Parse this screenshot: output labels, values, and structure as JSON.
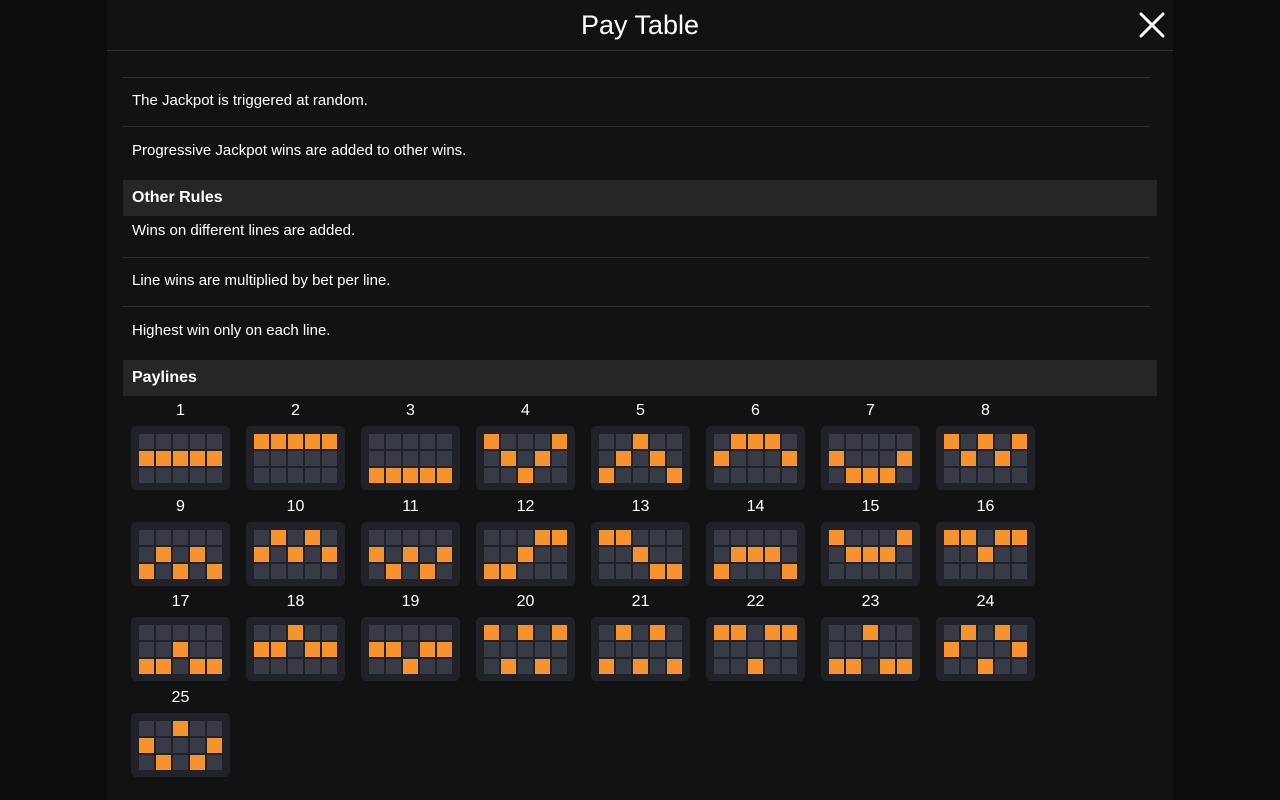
{
  "header": {
    "title": "Pay Table"
  },
  "jackpot_rules": [
    "The Jackpot is triggered at random.",
    "Progressive Jackpot wins are added to other wins."
  ],
  "other_rules": {
    "heading": "Other Rules",
    "items": [
      "Wins on different lines are added.",
      "Line wins are multiplied by bet per line.",
      "Highest win only on each line."
    ]
  },
  "paylines": {
    "heading": "Paylines",
    "lines": [
      {
        "label": "1",
        "rows": [
          1,
          1,
          1,
          1,
          1
        ]
      },
      {
        "label": "2",
        "rows": [
          0,
          0,
          0,
          0,
          0
        ]
      },
      {
        "label": "3",
        "rows": [
          2,
          2,
          2,
          2,
          2
        ]
      },
      {
        "label": "4",
        "rows": [
          0,
          1,
          2,
          1,
          0
        ]
      },
      {
        "label": "5",
        "rows": [
          2,
          1,
          0,
          1,
          2
        ]
      },
      {
        "label": "6",
        "rows": [
          1,
          0,
          0,
          0,
          1
        ]
      },
      {
        "label": "7",
        "rows": [
          1,
          2,
          2,
          2,
          1
        ]
      },
      {
        "label": "8",
        "rows": [
          0,
          1,
          0,
          1,
          0
        ]
      },
      {
        "label": "9",
        "rows": [
          2,
          1,
          2,
          1,
          2
        ]
      },
      {
        "label": "10",
        "rows": [
          1,
          0,
          1,
          0,
          1
        ]
      },
      {
        "label": "11",
        "rows": [
          1,
          2,
          1,
          2,
          1
        ]
      },
      {
        "label": "12",
        "rows": [
          2,
          2,
          1,
          0,
          0
        ]
      },
      {
        "label": "13",
        "rows": [
          0,
          0,
          1,
          2,
          2
        ]
      },
      {
        "label": "14",
        "rows": [
          2,
          1,
          1,
          1,
          2
        ]
      },
      {
        "label": "15",
        "rows": [
          0,
          1,
          1,
          1,
          0
        ]
      },
      {
        "label": "16",
        "rows": [
          0,
          0,
          1,
          0,
          0
        ]
      },
      {
        "label": "17",
        "rows": [
          2,
          2,
          1,
          2,
          2
        ]
      },
      {
        "label": "18",
        "rows": [
          1,
          1,
          0,
          1,
          1
        ]
      },
      {
        "label": "19",
        "rows": [
          1,
          1,
          2,
          1,
          1
        ]
      },
      {
        "label": "20",
        "rows": [
          0,
          2,
          0,
          2,
          0
        ]
      },
      {
        "label": "21",
        "rows": [
          2,
          0,
          2,
          0,
          2
        ]
      },
      {
        "label": "22",
        "rows": [
          0,
          0,
          2,
          0,
          0
        ]
      },
      {
        "label": "23",
        "rows": [
          2,
          2,
          0,
          2,
          2
        ]
      },
      {
        "label": "24",
        "rows": [
          1,
          0,
          2,
          0,
          1
        ]
      },
      {
        "label": "25",
        "rows": [
          1,
          2,
          0,
          2,
          1
        ]
      }
    ]
  }
}
